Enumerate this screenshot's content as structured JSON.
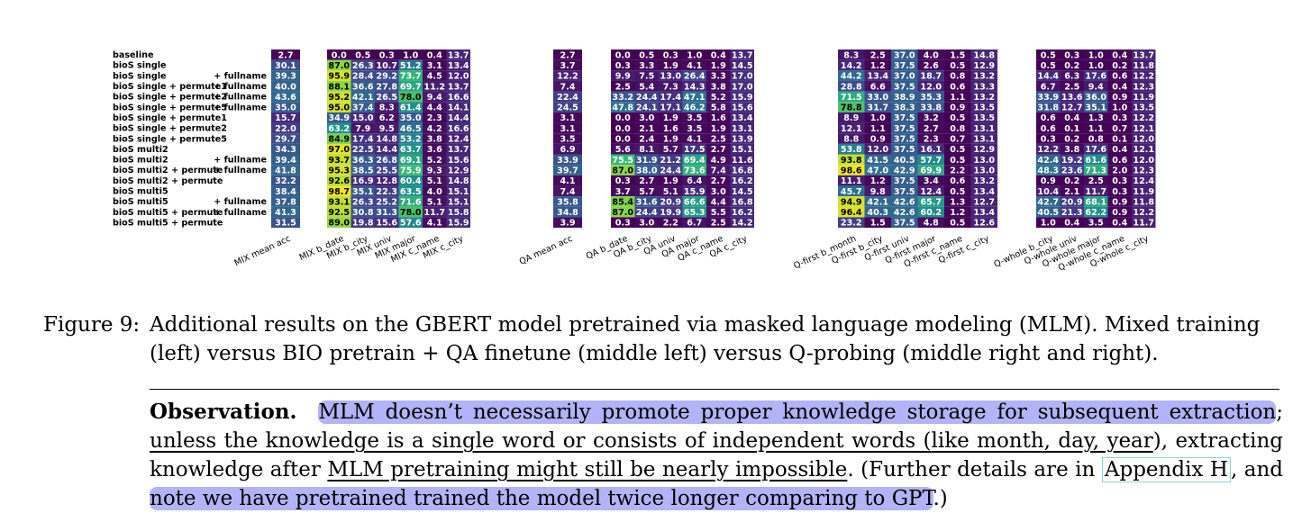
{
  "chart_data": {
    "type": "heatmap",
    "colormap": "viridis",
    "vmin": 0,
    "vmax": 100,
    "rows": [
      "baseline",
      "bioS single",
      "bioS single + fullname",
      "bioS single + permute1 + fullname",
      "bioS single + permute2 + fullname",
      "bioS single + permute5 + fullname",
      "bioS single + permute1",
      "bioS single + permute2",
      "bioS single + permute5",
      "bioS multi2",
      "bioS multi2 + fullname",
      "bioS multi2 + permute + fullname",
      "bioS multi2 + permute",
      "bioS multi5",
      "bioS multi5 + fullname",
      "bioS multi5 + permute + fullname",
      "bioS multi5 + permute"
    ],
    "groups": [
      {
        "columns": [
          "MIX mean acc"
        ],
        "values": [
          [
            2.7
          ],
          [
            30.1
          ],
          [
            39.3
          ],
          [
            40.0
          ],
          [
            43.6
          ],
          [
            35.0
          ],
          [
            15.7
          ],
          [
            22.0
          ],
          [
            29.7
          ],
          [
            34.3
          ],
          [
            39.4
          ],
          [
            41.8
          ],
          [
            32.2
          ],
          [
            38.4
          ],
          [
            37.8
          ],
          [
            41.3
          ],
          [
            31.5
          ]
        ]
      },
      {
        "columns": [
          "MIX b_date",
          "MIX b_city",
          "MIX univ",
          "MIX major",
          "MIX c_name",
          "MIX c_city"
        ],
        "values": [
          [
            0.0,
            0.5,
            0.3,
            1.0,
            0.4,
            13.7
          ],
          [
            87.0,
            26.3,
            10.7,
            51.2,
            3.1,
            13.4
          ],
          [
            95.9,
            28.4,
            29.2,
            73.7,
            4.5,
            12.0
          ],
          [
            88.1,
            36.6,
            27.8,
            69.7,
            11.2,
            13.7
          ],
          [
            95.2,
            42.1,
            26.5,
            78.0,
            9.4,
            16.6
          ],
          [
            95.0,
            37.4,
            8.3,
            61.4,
            4.4,
            14.1
          ],
          [
            34.9,
            15.0,
            6.2,
            35.0,
            2.3,
            14.4
          ],
          [
            63.2,
            7.9,
            9.5,
            46.5,
            4.2,
            16.6
          ],
          [
            84.9,
            17.4,
            14.8,
            53.2,
            3.8,
            12.4
          ],
          [
            97.0,
            22.5,
            14.4,
            63.7,
            3.6,
            13.7
          ],
          [
            93.7,
            36.3,
            26.8,
            69.1,
            5.2,
            15.6
          ],
          [
            95.3,
            38.5,
            25.5,
            75.9,
            9.3,
            12.9
          ],
          [
            92.6,
            16.9,
            12.8,
            60.4,
            5.1,
            14.8
          ],
          [
            98.7,
            35.1,
            22.3,
            63.5,
            4.0,
            15.1
          ],
          [
            93.1,
            26.3,
            25.2,
            71.6,
            5.1,
            15.1
          ],
          [
            92.5,
            30.8,
            31.3,
            78.0,
            11.7,
            15.8
          ],
          [
            89.0,
            19.8,
            15.6,
            57.6,
            4.1,
            15.9
          ]
        ]
      },
      {
        "columns": [
          "QA mean acc"
        ],
        "values": [
          [
            2.7
          ],
          [
            3.7
          ],
          [
            12.2
          ],
          [
            7.4
          ],
          [
            22.4
          ],
          [
            24.5
          ],
          [
            3.1
          ],
          [
            3.1
          ],
          [
            3.5
          ],
          [
            6.9
          ],
          [
            33.9
          ],
          [
            39.7
          ],
          [
            4.1
          ],
          [
            7.4
          ],
          [
            35.8
          ],
          [
            34.8
          ],
          [
            3.9
          ]
        ]
      },
      {
        "columns": [
          "QA b_date",
          "QA b_city",
          "QA univ",
          "QA major",
          "QA c_name",
          "QA c_city"
        ],
        "values": [
          [
            0.0,
            0.5,
            0.3,
            1.0,
            0.4,
            13.7
          ],
          [
            0.3,
            3.3,
            1.9,
            4.1,
            1.9,
            14.5
          ],
          [
            9.9,
            7.5,
            13.0,
            26.4,
            3.3,
            17.0
          ],
          [
            2.5,
            5.4,
            7.3,
            14.3,
            3.8,
            17.0
          ],
          [
            33.2,
            24.4,
            17.4,
            47.1,
            5.2,
            15.9
          ],
          [
            47.8,
            24.1,
            17.1,
            46.2,
            5.8,
            15.6
          ],
          [
            0.0,
            3.0,
            1.9,
            3.5,
            1.6,
            13.4
          ],
          [
            0.0,
            2.1,
            1.6,
            3.5,
            1.9,
            13.1
          ],
          [
            0.0,
            2.4,
            1.9,
            4.1,
            2.5,
            13.9
          ],
          [
            5.6,
            8.1,
            5.7,
            17.5,
            2.7,
            15.1
          ],
          [
            75.5,
            31.9,
            21.2,
            69.4,
            4.9,
            11.6
          ],
          [
            87.0,
            38.0,
            24.4,
            73.6,
            7.4,
            16.8
          ],
          [
            0.3,
            2.7,
            1.9,
            6.4,
            2.7,
            16.2
          ],
          [
            3.7,
            5.7,
            5.1,
            15.9,
            3.0,
            14.5
          ],
          [
            85.4,
            31.6,
            20.9,
            66.6,
            4.4,
            16.8
          ],
          [
            87.0,
            24.4,
            19.9,
            65.3,
            5.5,
            16.2
          ],
          [
            0.3,
            3.0,
            2.2,
            6.7,
            2.5,
            14.2
          ]
        ]
      },
      {
        "columns": [
          "Q-first b_month",
          "Q-first b_city",
          "Q-first univ",
          "Q-first major",
          "Q-first c_name",
          "Q-first c_city"
        ],
        "values": [
          [
            8.3,
            2.5,
            37.0,
            4.0,
            1.5,
            14.8
          ],
          [
            14.2,
            1.2,
            37.5,
            2.6,
            0.5,
            12.9
          ],
          [
            44.2,
            13.4,
            37.0,
            18.7,
            0.8,
            13.2
          ],
          [
            28.8,
            6.6,
            37.5,
            12.0,
            0.6,
            13.3
          ],
          [
            71.5,
            33.0,
            38.9,
            35.3,
            1.1,
            13.2
          ],
          [
            78.8,
            31.7,
            38.3,
            33.8,
            0.9,
            13.5
          ],
          [
            8.9,
            1.0,
            37.5,
            3.2,
            0.5,
            13.5
          ],
          [
            12.1,
            1.1,
            37.5,
            2.7,
            0.8,
            13.1
          ],
          [
            8.8,
            0.9,
            37.5,
            2.3,
            0.7,
            13.1
          ],
          [
            53.8,
            12.0,
            37.5,
            16.1,
            0.5,
            12.9
          ],
          [
            93.8,
            41.5,
            40.5,
            57.7,
            0.5,
            13.0
          ],
          [
            98.6,
            47.0,
            42.9,
            69.9,
            2.2,
            13.0
          ],
          [
            11.1,
            1.2,
            37.5,
            3.4,
            0.6,
            13.2
          ],
          [
            45.7,
            9.8,
            37.5,
            12.4,
            0.5,
            13.4
          ],
          [
            94.9,
            42.1,
            42.6,
            65.7,
            1.3,
            12.7
          ],
          [
            96.4,
            40.3,
            42.6,
            60.2,
            1.2,
            13.4
          ],
          [
            23.2,
            1.5,
            37.5,
            4.8,
            0.5,
            12.6
          ]
        ]
      },
      {
        "columns": [
          "Q-whole b_city",
          "Q-whole univ",
          "Q-whole major",
          "Q-whole c_name",
          "Q-whole c_city"
        ],
        "values": [
          [
            0.5,
            0.3,
            1.0,
            0.4,
            13.7
          ],
          [
            0.5,
            0.2,
            1.0,
            0.2,
            11.8
          ],
          [
            14.4,
            6.3,
            17.6,
            0.6,
            12.2
          ],
          [
            6.7,
            2.5,
            9.4,
            0.4,
            12.3
          ],
          [
            33.9,
            13.6,
            36.0,
            0.9,
            11.9
          ],
          [
            31.8,
            12.7,
            35.1,
            1.0,
            13.5
          ],
          [
            0.6,
            0.4,
            1.3,
            0.3,
            12.2
          ],
          [
            0.6,
            0.1,
            1.1,
            0.7,
            12.1
          ],
          [
            0.3,
            0.2,
            0.8,
            0.1,
            12.0
          ],
          [
            12.2,
            3.8,
            17.6,
            0.4,
            12.1
          ],
          [
            42.4,
            19.2,
            61.6,
            0.6,
            12.0
          ],
          [
            48.3,
            23.6,
            71.3,
            2.0,
            12.3
          ],
          [
            0.9,
            0.2,
            2.5,
            0.3,
            12.4
          ],
          [
            10.4,
            2.1,
            11.7,
            0.3,
            11.9
          ],
          [
            42.7,
            20.9,
            68.1,
            0.9,
            11.8
          ],
          [
            40.5,
            21.3,
            62.2,
            0.9,
            12.2
          ],
          [
            1.0,
            0.4,
            3.5,
            0.4,
            11.7
          ]
        ]
      }
    ]
  },
  "caption": {
    "label": "Figure 9:",
    "text": "Additional results on the GBERT model pretrained via masked language modeling (MLM). Mixed training (left) versus BIO pretrain + QA finetune (middle left) versus Q-probing (middle right and right)."
  },
  "observation": {
    "heading": "Observation.",
    "part1": "MLM doesn’t necessarily promote proper knowledge storage for subsequent extraction",
    "part2": ";",
    "part3": "unless the knowledge is a single word or consists of independent words (like month, day, year",
    "part4": "), extracting knowledge after",
    "part5": "MLM pretraining might still be nearly impossible",
    "part6": ". (Further details are in",
    "part7": "Appendix H",
    "part8": ", and",
    "part9": "note we have pretrained trained the model twice longer comparing to GPT",
    "part10": ".)"
  }
}
